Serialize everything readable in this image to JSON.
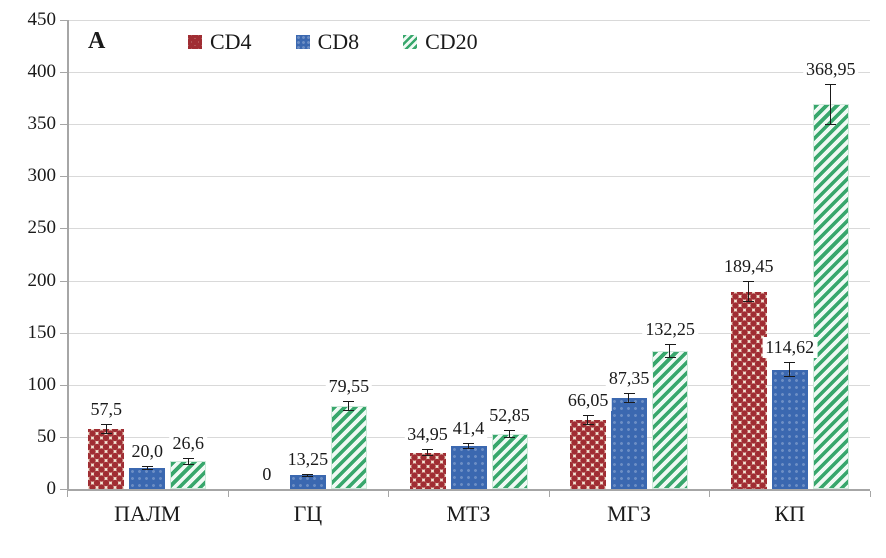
{
  "figure_label": "A",
  "legend": {
    "items": [
      {
        "label": "CD4",
        "swatch": "cd4-pattern-swatch"
      },
      {
        "label": "CD8",
        "swatch": "cd8-solid-swatch"
      },
      {
        "label": "CD20",
        "swatch": "cd20-hatch-swatch"
      }
    ],
    "position": "top"
  },
  "colors": {
    "cd4_dot": "#a02d33",
    "cd4_background": "#f4e8d7",
    "cd8_blue": "#3b68b0",
    "cd20_green": "#38a76c",
    "cd20_background": "#f0f9f4",
    "gridline": "#d9d9d9",
    "axis": "#a6a6a6",
    "text": "#1a1a1a"
  },
  "chart_data": {
    "type": "bar",
    "title": "",
    "xlabel": "",
    "ylabel": "",
    "categories": [
      "ПАЛМ",
      "ГЦ",
      "МТЗ",
      "МГЗ",
      "КП"
    ],
    "series": [
      {
        "name": "CD4",
        "values": [
          57.5,
          0,
          34.95,
          66.05,
          189.45
        ],
        "value_labels": [
          "57,5",
          "0",
          "34,95",
          "66,05",
          "189,45"
        ],
        "errors": [
          5,
          0,
          3,
          5,
          10
        ]
      },
      {
        "name": "CD8",
        "values": [
          20.0,
          13.25,
          41.4,
          87.35,
          114.62
        ],
        "value_labels": [
          "20,0",
          "13,25",
          "41,4",
          "87,35",
          "114,62"
        ],
        "errors": [
          2,
          1.5,
          3,
          5,
          7
        ]
      },
      {
        "name": "CD20",
        "values": [
          26.6,
          79.55,
          52.85,
          132.25,
          368.95
        ],
        "value_labels": [
          "26,6",
          "79,55",
          "52,85",
          "132,25",
          "368,95"
        ],
        "errors": [
          3.5,
          5,
          4,
          7,
          20
        ]
      }
    ],
    "ylim": [
      0,
      450
    ],
    "yticks": [
      0,
      50,
      100,
      150,
      200,
      250,
      300,
      350,
      400,
      450
    ],
    "grid": true,
    "error_bars": true,
    "legend_position": "top-inside"
  }
}
